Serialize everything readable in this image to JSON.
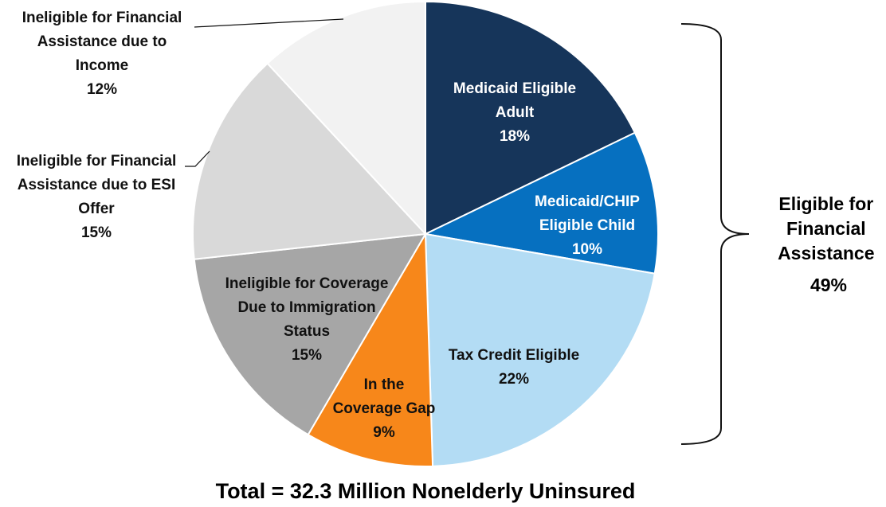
{
  "chart_data": {
    "type": "pie",
    "slices": [
      {
        "lines": [
          "Medicaid Eligible",
          "Adult"
        ],
        "pct": "18%",
        "value": 18,
        "color": "#16355a",
        "text_color": "#ffffff"
      },
      {
        "lines": [
          "Medicaid/CHIP",
          "Eligible Child"
        ],
        "pct": "10%",
        "value": 10,
        "color": "#0670c0",
        "text_color": "#ffffff"
      },
      {
        "lines": [
          "Tax Credit Eligible"
        ],
        "pct": "22%",
        "value": 22,
        "color": "#b3dcf4",
        "text_color": "#111111"
      },
      {
        "lines": [
          "In the",
          "Coverage Gap"
        ],
        "pct": "9%",
        "value": 9,
        "color": "#f7871a",
        "text_color": "#111111"
      },
      {
        "lines": [
          "Ineligible for Coverage",
          "Due to Immigration",
          "Status"
        ],
        "pct": "15%",
        "value": 15,
        "color": "#a6a6a6",
        "text_color": "#111111"
      },
      {
        "lines": [
          "Ineligible for Financial",
          "Assistance due to ESI",
          "Offer"
        ],
        "pct": "15%",
        "value": 15,
        "color": "#d9d9d9",
        "text_color": "#111111"
      },
      {
        "lines": [
          "Ineligible for Financial",
          "Assistance due to",
          "Income"
        ],
        "pct": "12%",
        "value": 12,
        "color": "#f2f2f2",
        "text_color": "#111111"
      }
    ],
    "bracket_label": [
      "Eligible for",
      "Financial",
      "Assistance",
      "49%"
    ],
    "total_label": "Total = 32.3 Million Nonelderly Uninsured"
  }
}
